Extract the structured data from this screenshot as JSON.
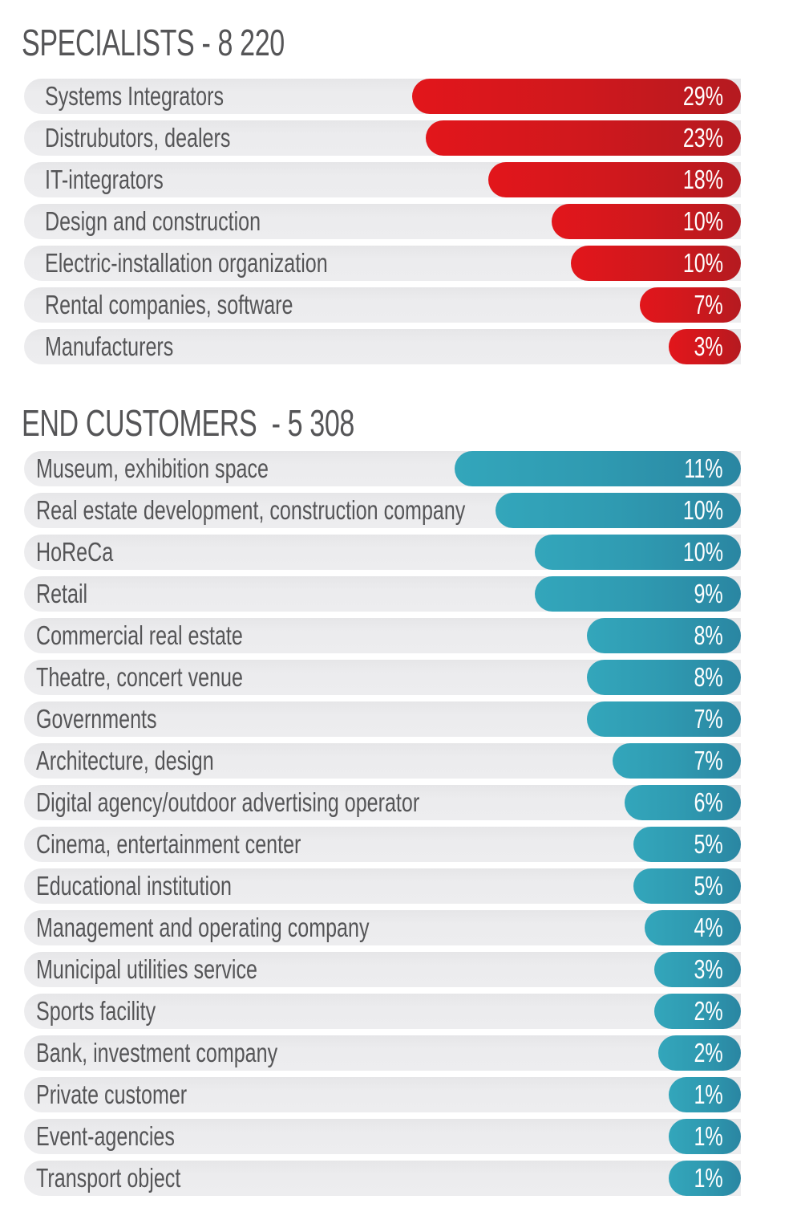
{
  "chart_data": [
    {
      "type": "bar",
      "orientation": "horizontal",
      "title": "SPECIALISTS - 8 220",
      "color": "#d0181d",
      "categories": [
        "Systems Integrators",
        "Distrubutors, dealers",
        "IT-integrators",
        "Design and construction",
        "Electric-installation organization",
        "Rental companies, software",
        "Manufacturers"
      ],
      "values": [
        29,
        23,
        18,
        10,
        10,
        7,
        3
      ],
      "value_labels": [
        "29%",
        "23%",
        "18%",
        "10%",
        "10%",
        "7%",
        "3%"
      ],
      "bar_fill": [
        0.459,
        0.44,
        0.352,
        0.264,
        0.237,
        0.141,
        0.101
      ],
      "unit": "%"
    },
    {
      "type": "bar",
      "orientation": "horizontal",
      "title": "END CUSTOMERS  - 5 308",
      "color": "#2f9ab1",
      "categories": [
        "Museum, exhibition space",
        "Real estate development, construction company",
        "HoReCa",
        "Retail",
        "Commercial real estate",
        "Theatre, concert venue",
        "Governments",
        "Architecture, design",
        "Digital agency/outdoor advertising operator",
        "Cinema, entertainment center",
        "Educational institution",
        "Management and operating company",
        "Municipal utilities service",
        "Sports facility",
        "Bank, investment company",
        "Private customer",
        "Event-agencies",
        "Transport object"
      ],
      "values": [
        11,
        10,
        10,
        9,
        8,
        8,
        7,
        7,
        6,
        5,
        5,
        4,
        3,
        2,
        2,
        1,
        1,
        1
      ],
      "value_labels": [
        "11%",
        "10%",
        "10%",
        "9%",
        "8%",
        "8%",
        "7%",
        "7%",
        "6%",
        "5%",
        "5%",
        "4%",
        "3%",
        "2%",
        "2%",
        "1%",
        "1%",
        "1%"
      ],
      "bar_fill": [
        0.399,
        0.342,
        0.287,
        0.287,
        0.215,
        0.215,
        0.215,
        0.179,
        0.162,
        0.15,
        0.15,
        0.134,
        0.121,
        0.121,
        0.115,
        0.101,
        0.101,
        0.101
      ],
      "unit": "%"
    }
  ]
}
